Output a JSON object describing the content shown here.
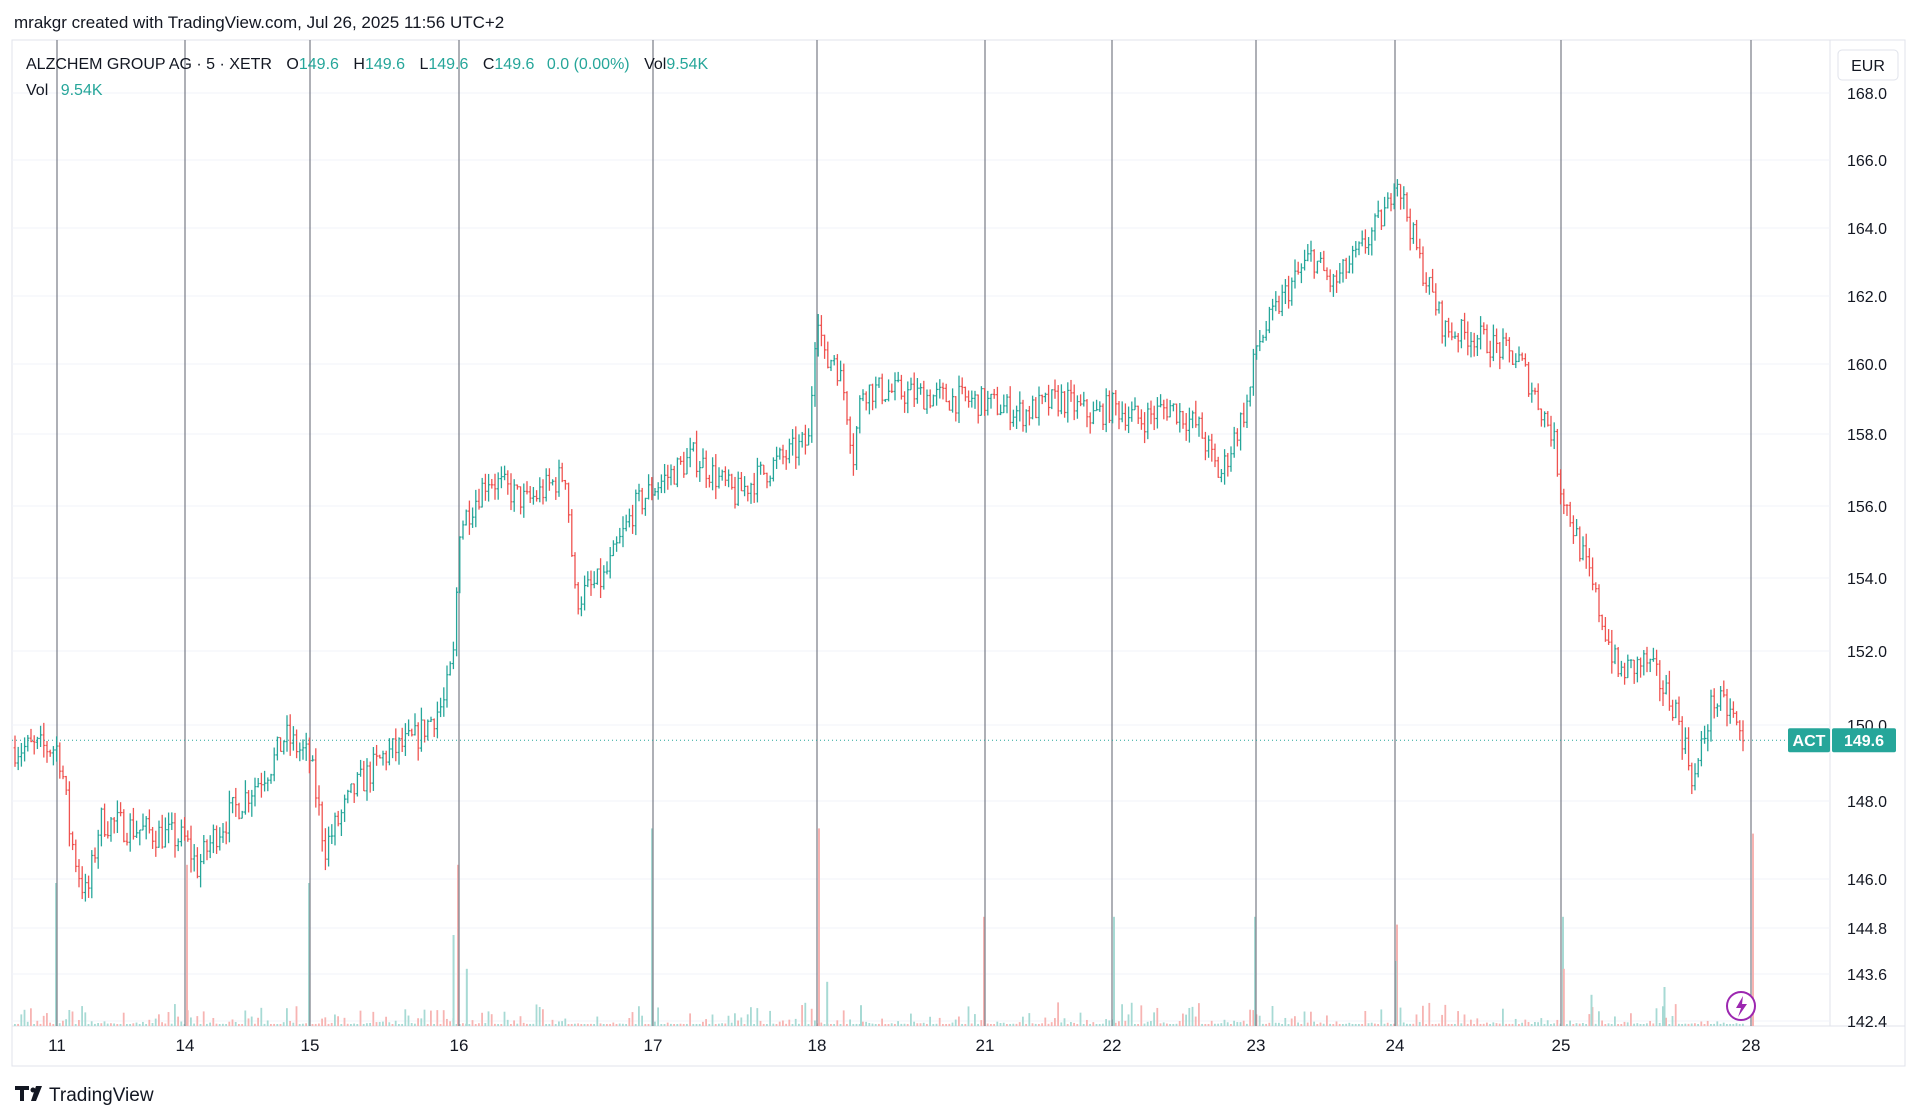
{
  "header": {
    "attribution": "mrakgr created with TradingView.com, Jul 26, 2025 11:56 UTC+2"
  },
  "legend": {
    "symbol": "ALZCHEM GROUP AG · 5 · XETR",
    "o_label": "O",
    "o_value": "149.6",
    "h_label": "H",
    "h_value": "149.6",
    "l_label": "L",
    "l_value": "149.6",
    "c_label": "C",
    "c_value": "149.6",
    "change": "0.0 (0.00%)",
    "vol_label": "Vol",
    "vol_value": "9.54K",
    "vol2_label": "Vol",
    "vol2_value": "9.54K"
  },
  "currency_button": "EUR",
  "price_tag": {
    "label": "ACT",
    "value": "149.6"
  },
  "footer": {
    "logo_text": "TradingView"
  },
  "colors": {
    "up": "#26a69a",
    "down": "#ef5350",
    "up_vol": "#a7dad4",
    "down_vol": "#f7b4b2",
    "grid": "#f0f3fa",
    "session_line": "#787b86",
    "text": "#131722",
    "price_line": "#26a69a",
    "flash": "#9c27b0"
  },
  "chart_data": {
    "type": "ohlc",
    "title": "ALZCHEM GROUP AG · 5 · XETR",
    "currency": "EUR",
    "y_ticks": [
      "142.4",
      "143.6",
      "144.8",
      "146.0",
      "148.0",
      "150.0",
      "152.0",
      "154.0",
      "156.0",
      "158.0",
      "160.0",
      "162.0",
      "164.0",
      "166.0",
      "168.0"
    ],
    "ylim": [
      142.4,
      168.0
    ],
    "x_labels": [
      "11",
      "14",
      "15",
      "16",
      "17",
      "18",
      "21",
      "22",
      "23",
      "24",
      "25",
      "28"
    ],
    "last_price": 149.6,
    "price_path": [
      [
        11,
        149.4
      ],
      [
        11.1,
        149.0
      ],
      [
        11.3,
        147.2
      ],
      [
        11.5,
        146.2
      ],
      [
        11.7,
        145.5
      ],
      [
        11.9,
        146.8
      ],
      [
        12.0,
        147.5
      ],
      [
        14,
        147.0
      ],
      [
        14.1,
        146.3
      ],
      [
        14.25,
        147.2
      ],
      [
        14.5,
        148.2
      ],
      [
        14.7,
        149.0
      ],
      [
        14.8,
        149.7
      ],
      [
        15,
        149.1
      ],
      [
        15.1,
        146.8
      ],
      [
        15.3,
        148.3
      ],
      [
        15.5,
        149.2
      ],
      [
        15.7,
        149.6
      ],
      [
        15.9,
        150.6
      ],
      [
        15.97,
        152.0
      ],
      [
        16,
        155.4
      ],
      [
        16.15,
        156.8
      ],
      [
        16.35,
        156.1
      ],
      [
        16.55,
        156.9
      ],
      [
        16.6,
        153.4
      ],
      [
        16.75,
        154.0
      ],
      [
        16.9,
        155.9
      ],
      [
        17,
        156.5
      ],
      [
        17.25,
        157.4
      ],
      [
        17.5,
        156.3
      ],
      [
        17.75,
        157.2
      ],
      [
        17.95,
        157.8
      ],
      [
        18,
        161.8
      ],
      [
        18.15,
        159.9
      ],
      [
        18.3,
        160.3
      ],
      [
        18.5,
        159.1
      ],
      [
        18.65,
        157.4
      ],
      [
        18.8,
        159.3
      ],
      [
        21,
        158.9
      ],
      [
        21.3,
        158.6
      ],
      [
        21.6,
        159.0
      ],
      [
        21.85,
        158.5
      ],
      [
        22,
        158.8
      ],
      [
        22.2,
        158.4
      ],
      [
        22.4,
        158.8
      ],
      [
        22.6,
        158.2
      ],
      [
        22.75,
        156.8
      ],
      [
        22.95,
        159.0
      ],
      [
        23,
        160.5
      ],
      [
        23.2,
        162.0
      ],
      [
        23.4,
        163.2
      ],
      [
        23.55,
        162.3
      ],
      [
        23.75,
        163.3
      ],
      [
        23.95,
        164.6
      ],
      [
        24,
        165.7
      ],
      [
        24.15,
        163.0
      ],
      [
        24.3,
        161.0
      ],
      [
        24.5,
        160.8
      ],
      [
        24.75,
        160.1
      ],
      [
        24.95,
        158.0
      ],
      [
        25,
        156.5
      ],
      [
        25.15,
        154.0
      ],
      [
        25.3,
        151.4
      ],
      [
        25.45,
        151.7
      ],
      [
        25.6,
        150.5
      ],
      [
        25.7,
        148.5
      ],
      [
        25.8,
        150.7
      ],
      [
        25.9,
        150.3
      ],
      [
        25.97,
        149.3
      ]
    ],
    "volume_spikes": [
      [
        11,
        0.55
      ],
      [
        14,
        0.62
      ],
      [
        15,
        0.55
      ],
      [
        15.95,
        0.35
      ],
      [
        16,
        0.62
      ],
      [
        16.03,
        0.22
      ],
      [
        17,
        0.76
      ],
      [
        18,
        0.76
      ],
      [
        18.2,
        0.17
      ],
      [
        18.75,
        0.08
      ],
      [
        21,
        0.42
      ],
      [
        22,
        0.42
      ],
      [
        23,
        0.42
      ],
      [
        24,
        0.39
      ],
      [
        24.01,
        0.25
      ],
      [
        25,
        0.42
      ],
      [
        25.02,
        0.22
      ],
      [
        25.15,
        0.12
      ],
      [
        25.55,
        0.15
      ],
      [
        26,
        0.74
      ]
    ],
    "grid": true
  }
}
